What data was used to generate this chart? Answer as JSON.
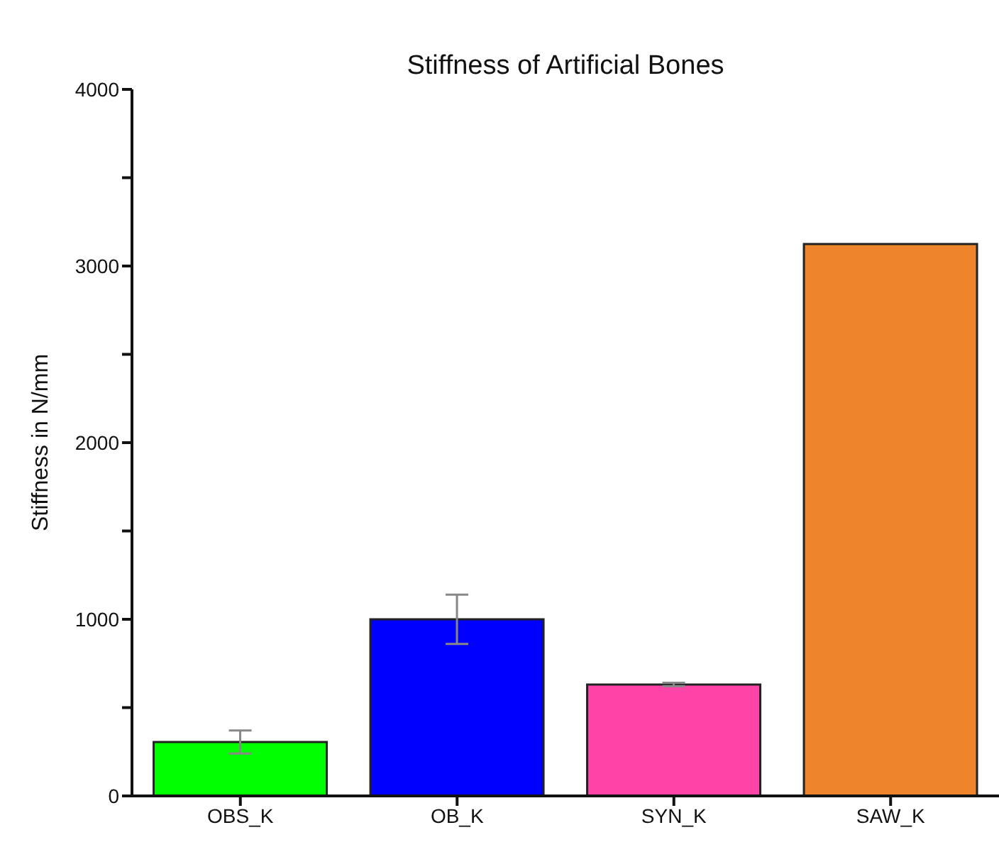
{
  "chart_data": {
    "type": "bar",
    "title": "Stiffness of Artificial Bones",
    "ylabel": "Stiffness in N/mm",
    "categories": [
      "OBS_K",
      "OB_K",
      "SYN_K",
      "SAW_K"
    ],
    "values": [
      305,
      1000,
      631,
      3125
    ],
    "errors": [
      65,
      140,
      10,
      null
    ],
    "colors": [
      "#00ff00",
      "#0000ff",
      "#ff44a8",
      "#ee842c"
    ],
    "ylim": [
      0,
      4000
    ],
    "yticks": [
      0,
      {
        "value": 500,
        "label": null
      },
      1000,
      {
        "value": 1500,
        "label": null
      },
      2000,
      {
        "value": 2500,
        "label": null
      },
      3000,
      {
        "value": 3500,
        "label": null
      },
      4000
    ],
    "grid": false,
    "legend": false
  }
}
